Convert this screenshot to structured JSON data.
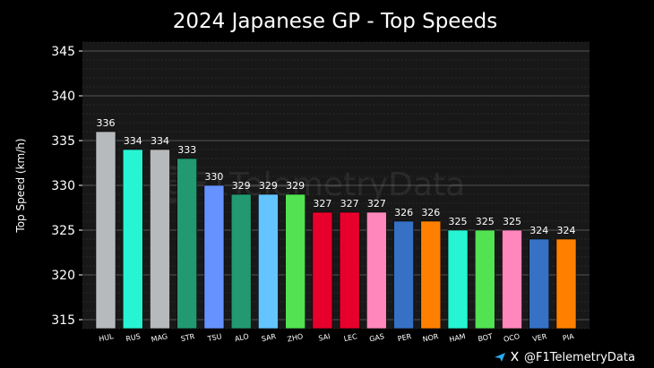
{
  "chart_data": {
    "type": "bar",
    "title": "2024 Japanese GP - Top Speeds",
    "xlabel": "",
    "ylabel": "Top Speed (km/h)",
    "ylim": [
      314,
      346
    ],
    "yticks": [
      315,
      320,
      325,
      330,
      335,
      340,
      345
    ],
    "grid": true,
    "categories": [
      "HUL",
      "RUS",
      "MAG",
      "STR",
      "TSU",
      "ALO",
      "SAR",
      "ZHO",
      "SAI",
      "LEC",
      "GAS",
      "PER",
      "NOR",
      "HAM",
      "BOT",
      "OCO",
      "VER",
      "PIA"
    ],
    "values": [
      336,
      334,
      334,
      333,
      330,
      329,
      329,
      329,
      327,
      327,
      327,
      326,
      326,
      325,
      325,
      325,
      324,
      324
    ],
    "colors": [
      "#b6babd",
      "#27f4d2",
      "#b6babd",
      "#229971",
      "#6692ff",
      "#229971",
      "#64c4ff",
      "#52e252",
      "#e8002d",
      "#e8002d",
      "#ff87bc",
      "#3671c6",
      "#ff8000",
      "#27f4d2",
      "#52e252",
      "#ff87bc",
      "#3671c6",
      "#ff8000"
    ],
    "watermark": "@F1TelemetryData",
    "credit": {
      "x_icon": "x-logo",
      "telegram_icon": "telegram-logo",
      "handle": "@F1TelemetryData"
    }
  }
}
